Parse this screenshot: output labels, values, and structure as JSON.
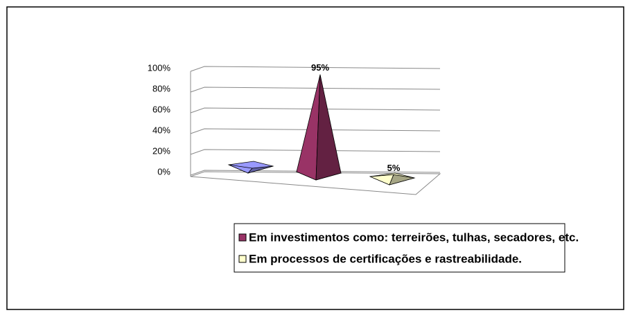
{
  "chart_data": {
    "type": "pyramid3d",
    "ylim": [
      0,
      100
    ],
    "yticks": [
      {
        "value": 0,
        "label": "0%"
      },
      {
        "value": 20,
        "label": "20%"
      },
      {
        "value": 40,
        "label": "40%"
      },
      {
        "value": 60,
        "label": "60%"
      },
      {
        "value": 80,
        "label": "80%"
      },
      {
        "value": 100,
        "label": "100%"
      }
    ],
    "grid": true,
    "legend": "bottom",
    "series": [
      {
        "name": null,
        "color": "#9999ff",
        "values": [
          0
        ],
        "value_labels": [
          null
        ]
      },
      {
        "name": "Em investimentos como: terreirões, tulhas, secadores, etc.",
        "color": "#993366",
        "values": [
          95
        ],
        "value_labels": [
          "95%"
        ]
      },
      {
        "name": "Em processos de certificações e rastreabilidade.",
        "color": "#ffffcc",
        "values": [
          5
        ],
        "value_labels": [
          "5%"
        ]
      }
    ]
  }
}
